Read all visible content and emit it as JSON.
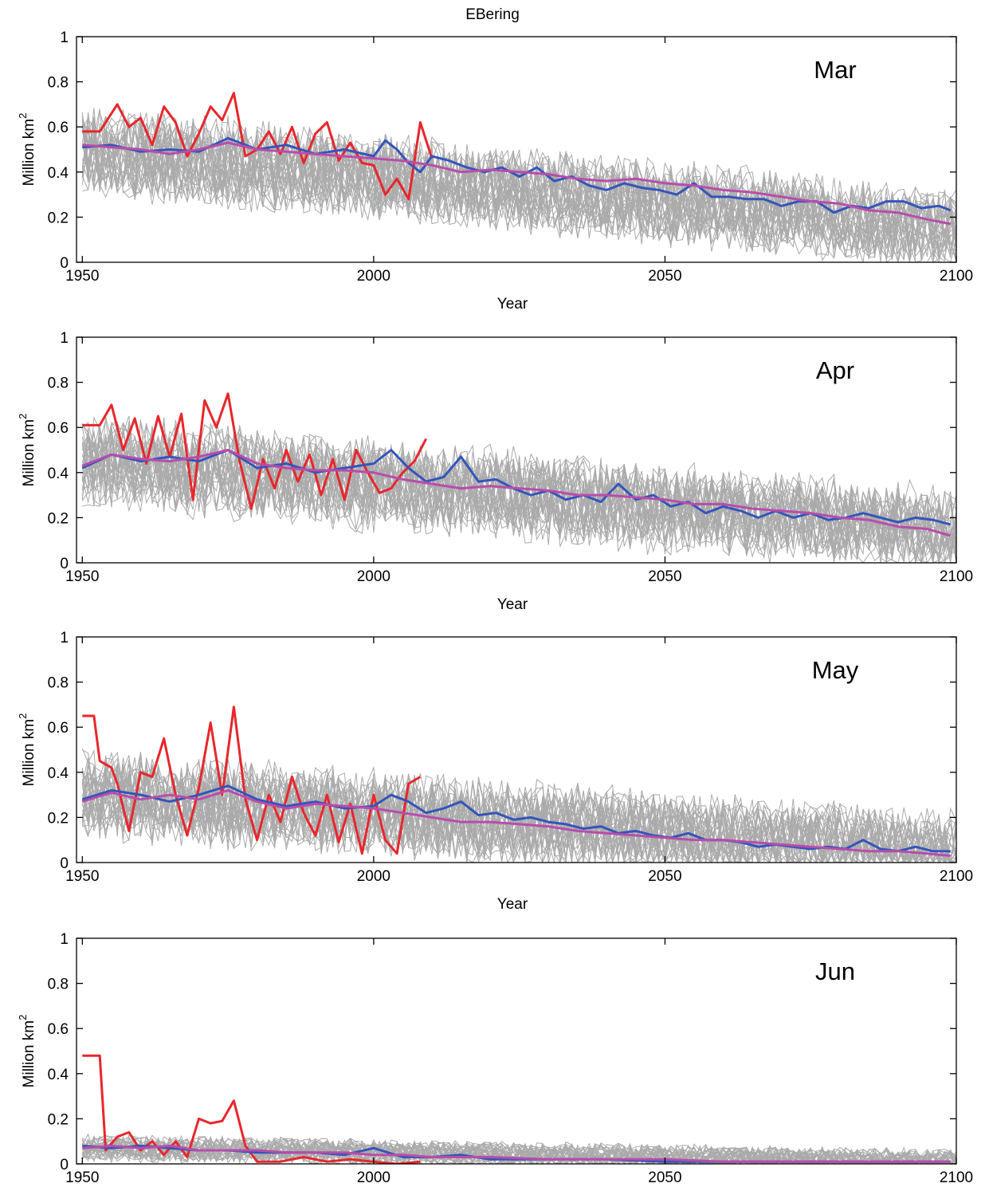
{
  "figure": {
    "title": "EBering"
  },
  "chart_data": [
    {
      "type": "line",
      "panel_label": "Mar",
      "xlabel": "Year",
      "ylabel": "Million km",
      "ylabel_superscript": "2",
      "xlim": [
        1949,
        2100
      ],
      "ylim": [
        0,
        1
      ],
      "xticks": [
        1950,
        2000,
        2050,
        2100
      ],
      "yticks": [
        0,
        0.2,
        0.4,
        0.6,
        0.8,
        1
      ],
      "ensemble": {
        "count": 30,
        "start": 1950,
        "end": 2100,
        "mean_start": 0.5,
        "mean_end": 0.15,
        "spread": 0.17,
        "color": "#aaaaaa"
      },
      "series": [
        {
          "color": "#e8262b",
          "x": [
            1950,
            1953,
            1956,
            1958,
            1960,
            1962,
            1964,
            1966,
            1968,
            1970,
            1972,
            1974,
            1976,
            1978,
            1980,
            1982,
            1984,
            1986,
            1988,
            1990,
            1992,
            1994,
            1996,
            1998,
            2000,
            2002,
            2004,
            2006,
            2008,
            2010
          ],
          "y": [
            0.58,
            0.58,
            0.7,
            0.6,
            0.64,
            0.52,
            0.69,
            0.62,
            0.47,
            0.57,
            0.69,
            0.63,
            0.75,
            0.47,
            0.5,
            0.58,
            0.48,
            0.6,
            0.44,
            0.57,
            0.62,
            0.45,
            0.53,
            0.44,
            0.43,
            0.3,
            0.37,
            0.28,
            0.62,
            0.46
          ]
        },
        {
          "color": "#3355bb",
          "x": [
            1950,
            1955,
            1960,
            1965,
            1970,
            1975,
            1980,
            1985,
            1990,
            1995,
            2000,
            2002,
            2004,
            2006,
            2008,
            2010,
            2013,
            2016,
            2019,
            2022,
            2025,
            2028,
            2031,
            2034,
            2037,
            2040,
            2043,
            2046,
            2049,
            2052,
            2055,
            2058,
            2061,
            2064,
            2067,
            2070,
            2073,
            2076,
            2079,
            2082,
            2085,
            2088,
            2091,
            2094,
            2097,
            2099
          ],
          "y": [
            0.51,
            0.52,
            0.49,
            0.5,
            0.49,
            0.55,
            0.5,
            0.52,
            0.48,
            0.5,
            0.47,
            0.54,
            0.5,
            0.44,
            0.4,
            0.47,
            0.45,
            0.42,
            0.4,
            0.42,
            0.38,
            0.42,
            0.36,
            0.38,
            0.34,
            0.32,
            0.35,
            0.33,
            0.32,
            0.3,
            0.35,
            0.29,
            0.29,
            0.28,
            0.28,
            0.25,
            0.27,
            0.27,
            0.22,
            0.25,
            0.24,
            0.27,
            0.27,
            0.24,
            0.25,
            0.23
          ]
        },
        {
          "color": "#b84dab",
          "x": [
            1950,
            1955,
            1960,
            1965,
            1970,
            1975,
            1980,
            1985,
            1990,
            1995,
            2000,
            2005,
            2010,
            2015,
            2020,
            2025,
            2030,
            2035,
            2040,
            2045,
            2050,
            2055,
            2060,
            2065,
            2070,
            2075,
            2080,
            2085,
            2090,
            2095,
            2099
          ],
          "y": [
            0.52,
            0.51,
            0.5,
            0.48,
            0.5,
            0.53,
            0.5,
            0.49,
            0.48,
            0.47,
            0.46,
            0.45,
            0.43,
            0.4,
            0.41,
            0.4,
            0.39,
            0.37,
            0.36,
            0.37,
            0.35,
            0.34,
            0.32,
            0.31,
            0.29,
            0.27,
            0.26,
            0.23,
            0.22,
            0.19,
            0.17
          ]
        }
      ]
    },
    {
      "type": "line",
      "panel_label": "Apr",
      "xlabel": "Year",
      "ylabel": "Million km",
      "ylabel_superscript": "2",
      "xlim": [
        1949,
        2100
      ],
      "ylim": [
        0,
        1
      ],
      "xticks": [
        1950,
        2000,
        2050,
        2100
      ],
      "yticks": [
        0,
        0.2,
        0.4,
        0.6,
        0.8,
        1
      ],
      "ensemble": {
        "count": 30,
        "start": 1950,
        "end": 2100,
        "mean_start": 0.45,
        "mean_end": 0.14,
        "spread": 0.18,
        "color": "#aaaaaa"
      },
      "series": [
        {
          "color": "#e8262b",
          "x": [
            1950,
            1953,
            1955,
            1957,
            1959,
            1961,
            1963,
            1965,
            1967,
            1969,
            1971,
            1973,
            1975,
            1977,
            1979,
            1981,
            1983,
            1985,
            1987,
            1989,
            1991,
            1993,
            1995,
            1997,
            1999,
            2001,
            2003,
            2005,
            2007,
            2009
          ],
          "y": [
            0.61,
            0.61,
            0.7,
            0.5,
            0.64,
            0.44,
            0.65,
            0.47,
            0.66,
            0.28,
            0.72,
            0.6,
            0.75,
            0.45,
            0.24,
            0.46,
            0.33,
            0.5,
            0.36,
            0.48,
            0.3,
            0.46,
            0.28,
            0.5,
            0.4,
            0.31,
            0.33,
            0.4,
            0.45,
            0.55
          ]
        },
        {
          "color": "#3355bb",
          "x": [
            1950,
            1955,
            1960,
            1965,
            1970,
            1975,
            1980,
            1985,
            1990,
            1995,
            2000,
            2003,
            2006,
            2009,
            2012,
            2015,
            2018,
            2021,
            2024,
            2027,
            2030,
            2033,
            2036,
            2039,
            2042,
            2045,
            2048,
            2051,
            2054,
            2057,
            2060,
            2063,
            2066,
            2069,
            2072,
            2075,
            2078,
            2081,
            2084,
            2087,
            2090,
            2093,
            2096,
            2099
          ],
          "y": [
            0.42,
            0.48,
            0.45,
            0.47,
            0.45,
            0.5,
            0.42,
            0.44,
            0.4,
            0.42,
            0.44,
            0.5,
            0.42,
            0.36,
            0.38,
            0.47,
            0.36,
            0.37,
            0.33,
            0.3,
            0.32,
            0.28,
            0.3,
            0.27,
            0.35,
            0.28,
            0.3,
            0.25,
            0.27,
            0.22,
            0.25,
            0.23,
            0.2,
            0.23,
            0.2,
            0.22,
            0.19,
            0.2,
            0.22,
            0.2,
            0.18,
            0.2,
            0.19,
            0.17
          ]
        },
        {
          "color": "#b84dab",
          "x": [
            1950,
            1955,
            1960,
            1965,
            1970,
            1975,
            1980,
            1985,
            1990,
            1995,
            2000,
            2005,
            2010,
            2015,
            2020,
            2025,
            2030,
            2035,
            2040,
            2045,
            2050,
            2055,
            2060,
            2065,
            2070,
            2075,
            2080,
            2085,
            2090,
            2095,
            2099
          ],
          "y": [
            0.43,
            0.48,
            0.46,
            0.45,
            0.47,
            0.5,
            0.44,
            0.42,
            0.41,
            0.41,
            0.4,
            0.37,
            0.35,
            0.33,
            0.34,
            0.33,
            0.32,
            0.3,
            0.3,
            0.29,
            0.28,
            0.26,
            0.26,
            0.24,
            0.23,
            0.22,
            0.2,
            0.19,
            0.16,
            0.15,
            0.12
          ]
        }
      ]
    },
    {
      "type": "line",
      "panel_label": "May",
      "xlabel": "Year",
      "ylabel": "Million km",
      "ylabel_superscript": "2",
      "xlim": [
        1949,
        2100
      ],
      "ylim": [
        0,
        1
      ],
      "xticks": [
        1950,
        2000,
        2050,
        2100
      ],
      "yticks": [
        0,
        0.2,
        0.4,
        0.6,
        0.8,
        1
      ],
      "ensemble": {
        "count": 30,
        "start": 1950,
        "end": 2100,
        "mean_start": 0.3,
        "mean_end": 0.05,
        "spread": 0.17,
        "color": "#aaaaaa"
      },
      "series": [
        {
          "color": "#e8262b",
          "x": [
            1950,
            1952,
            1953,
            1955,
            1956,
            1958,
            1960,
            1962,
            1964,
            1966,
            1968,
            1970,
            1972,
            1974,
            1976,
            1978,
            1980,
            1982,
            1984,
            1986,
            1988,
            1990,
            1992,
            1994,
            1996,
            1998,
            2000,
            2002,
            2004,
            2006,
            2008
          ],
          "y": [
            0.65,
            0.65,
            0.45,
            0.42,
            0.35,
            0.14,
            0.4,
            0.38,
            0.55,
            0.3,
            0.12,
            0.33,
            0.62,
            0.3,
            0.69,
            0.28,
            0.1,
            0.3,
            0.18,
            0.38,
            0.22,
            0.12,
            0.3,
            0.09,
            0.26,
            0.04,
            0.3,
            0.1,
            0.04,
            0.35,
            0.38
          ]
        },
        {
          "color": "#3355bb",
          "x": [
            1950,
            1955,
            1960,
            1965,
            1970,
            1975,
            1980,
            1985,
            1990,
            1995,
            2000,
            2003,
            2006,
            2009,
            2012,
            2015,
            2018,
            2021,
            2024,
            2027,
            2030,
            2033,
            2036,
            2039,
            2042,
            2045,
            2048,
            2051,
            2054,
            2057,
            2060,
            2063,
            2066,
            2069,
            2072,
            2075,
            2078,
            2081,
            2084,
            2087,
            2090,
            2093,
            2096,
            2099
          ],
          "y": [
            0.28,
            0.32,
            0.3,
            0.27,
            0.3,
            0.34,
            0.28,
            0.25,
            0.27,
            0.24,
            0.25,
            0.3,
            0.27,
            0.22,
            0.24,
            0.27,
            0.21,
            0.22,
            0.19,
            0.2,
            0.18,
            0.17,
            0.15,
            0.16,
            0.13,
            0.14,
            0.12,
            0.11,
            0.13,
            0.1,
            0.1,
            0.09,
            0.07,
            0.08,
            0.07,
            0.06,
            0.07,
            0.06,
            0.1,
            0.06,
            0.05,
            0.07,
            0.05,
            0.05
          ]
        },
        {
          "color": "#b84dab",
          "x": [
            1950,
            1955,
            1960,
            1965,
            1970,
            1975,
            1980,
            1985,
            1990,
            1995,
            2000,
            2005,
            2010,
            2015,
            2020,
            2025,
            2030,
            2035,
            2040,
            2045,
            2050,
            2055,
            2060,
            2065,
            2070,
            2075,
            2080,
            2085,
            2090,
            2095,
            2099
          ],
          "y": [
            0.27,
            0.31,
            0.28,
            0.3,
            0.28,
            0.32,
            0.27,
            0.24,
            0.26,
            0.25,
            0.24,
            0.22,
            0.2,
            0.18,
            0.18,
            0.17,
            0.16,
            0.14,
            0.13,
            0.12,
            0.11,
            0.1,
            0.1,
            0.09,
            0.08,
            0.07,
            0.06,
            0.05,
            0.05,
            0.04,
            0.03
          ]
        }
      ]
    },
    {
      "type": "line",
      "panel_label": "Jun",
      "xlabel": "",
      "ylabel": "Million km",
      "ylabel_superscript": "2",
      "xlim": [
        1949,
        2100
      ],
      "ylim": [
        0,
        1
      ],
      "xticks": [
        1950,
        2000,
        2050,
        2100
      ],
      "yticks": [
        0,
        0.2,
        0.4,
        0.6,
        0.8,
        1
      ],
      "ensemble": {
        "count": 30,
        "start": 1950,
        "end": 2100,
        "mean_start": 0.07,
        "mean_end": 0.01,
        "spread": 0.05,
        "color": "#aaaaaa"
      },
      "series": [
        {
          "color": "#e8262b",
          "x": [
            1950,
            1953,
            1954,
            1956,
            1958,
            1960,
            1962,
            1964,
            1966,
            1968,
            1970,
            1972,
            1974,
            1976,
            1978,
            1980,
            1984,
            1988,
            1992,
            1996,
            2000,
            2004,
            2008
          ],
          "y": [
            0.48,
            0.48,
            0.06,
            0.12,
            0.14,
            0.06,
            0.1,
            0.04,
            0.1,
            0.03,
            0.2,
            0.18,
            0.19,
            0.28,
            0.08,
            0.01,
            0.01,
            0.03,
            0.01,
            0.02,
            0.01,
            0.0,
            0.01
          ]
        },
        {
          "color": "#3355bb",
          "x": [
            1950,
            1955,
            1960,
            1965,
            1970,
            1975,
            1980,
            1985,
            1990,
            1995,
            2000,
            2005,
            2010,
            2015,
            2020,
            2030,
            2040,
            2050,
            2060,
            2070,
            2080,
            2090,
            2099
          ],
          "y": [
            0.08,
            0.07,
            0.08,
            0.07,
            0.06,
            0.06,
            0.05,
            0.05,
            0.05,
            0.04,
            0.07,
            0.03,
            0.03,
            0.04,
            0.02,
            0.02,
            0.02,
            0.01,
            0.01,
            0.01,
            0.01,
            0.01,
            0.01
          ]
        },
        {
          "color": "#b84dab",
          "x": [
            1950,
            1955,
            1960,
            1965,
            1970,
            1975,
            1980,
            1985,
            1990,
            1995,
            2000,
            2005,
            2010,
            2015,
            2020,
            2030,
            2040,
            2050,
            2060,
            2070,
            2080,
            2090,
            2099
          ],
          "y": [
            0.07,
            0.08,
            0.07,
            0.08,
            0.06,
            0.06,
            0.06,
            0.05,
            0.05,
            0.05,
            0.04,
            0.04,
            0.03,
            0.03,
            0.03,
            0.02,
            0.02,
            0.02,
            0.01,
            0.01,
            0.01,
            0.01,
            0.01
          ]
        }
      ]
    }
  ]
}
